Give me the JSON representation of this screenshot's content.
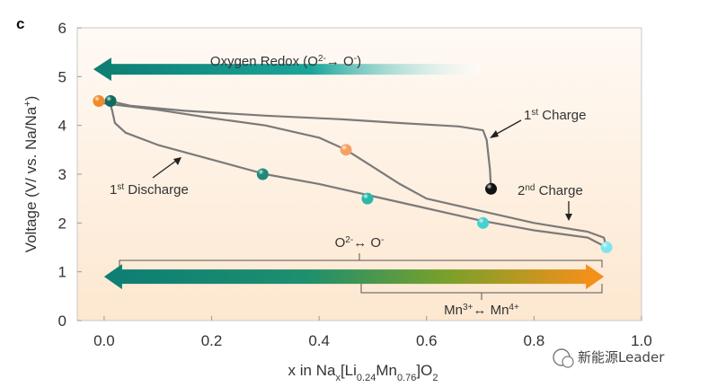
{
  "panel_label": "c",
  "watermark": "新能源Leader",
  "chart_data": {
    "type": "line",
    "xlabel": {
      "base": "x in Na",
      "sub1": "x",
      "mid1": "[Li",
      "sub2": "0.24",
      "mid2": "Mn",
      "sub3": "0.76",
      "mid3": "]O",
      "sub4": "2"
    },
    "ylabel": {
      "base": "Voltage (V/ vs. Na/Na",
      "sup": "+",
      "end": ")"
    },
    "xlim": [
      -0.05,
      1.0
    ],
    "ylim": [
      0,
      6
    ],
    "xticks": [
      {
        "v": 0.0,
        "label": "0.0"
      },
      {
        "v": 0.2,
        "label": "0.2"
      },
      {
        "v": 0.4,
        "label": "0.4"
      },
      {
        "v": 0.6,
        "label": "0.6"
      },
      {
        "v": 0.8,
        "label": "0.8"
      },
      {
        "v": 1.0,
        "label": "1.0"
      }
    ],
    "yticks": [
      {
        "v": 0,
        "label": "0"
      },
      {
        "v": 1,
        "label": "1"
      },
      {
        "v": 2,
        "label": "2"
      },
      {
        "v": 3,
        "label": "3"
      },
      {
        "v": 4,
        "label": "4"
      },
      {
        "v": 5,
        "label": "5"
      },
      {
        "v": 6,
        "label": "6"
      }
    ],
    "series": [
      {
        "name": "1st Charge",
        "color": "#7a7a7a",
        "points": [
          [
            0.72,
            2.7
          ],
          [
            0.718,
            3.1
          ],
          [
            0.712,
            3.7
          ],
          [
            0.705,
            3.9
          ],
          [
            0.66,
            3.98
          ],
          [
            0.55,
            4.05
          ],
          [
            0.45,
            4.12
          ],
          [
            0.3,
            4.2
          ],
          [
            0.15,
            4.3
          ],
          [
            0.05,
            4.4
          ],
          [
            0.01,
            4.5
          ]
        ]
      },
      {
        "name": "1st Discharge",
        "color": "#7a7a7a",
        "points": [
          [
            0.01,
            4.5
          ],
          [
            0.015,
            4.3
          ],
          [
            0.02,
            4.05
          ],
          [
            0.04,
            3.85
          ],
          [
            0.1,
            3.6
          ],
          [
            0.2,
            3.3
          ],
          [
            0.3,
            3.0
          ],
          [
            0.4,
            2.8
          ],
          [
            0.5,
            2.55
          ],
          [
            0.6,
            2.3
          ],
          [
            0.7,
            2.05
          ],
          [
            0.8,
            1.85
          ],
          [
            0.9,
            1.7
          ],
          [
            0.935,
            1.5
          ]
        ]
      },
      {
        "name": "2nd Charge",
        "color": "#7a7a7a",
        "points": [
          [
            0.935,
            1.5
          ],
          [
            0.93,
            1.7
          ],
          [
            0.9,
            1.82
          ],
          [
            0.8,
            2.0
          ],
          [
            0.7,
            2.25
          ],
          [
            0.6,
            2.5
          ],
          [
            0.55,
            2.8
          ],
          [
            0.5,
            3.15
          ],
          [
            0.45,
            3.5
          ],
          [
            0.4,
            3.75
          ],
          [
            0.3,
            4.0
          ],
          [
            0.2,
            4.15
          ],
          [
            0.1,
            4.32
          ],
          [
            0.0,
            4.45
          ],
          [
            -0.01,
            4.5
          ]
        ]
      }
    ],
    "markers": [
      {
        "x": -0.01,
        "y": 4.5,
        "color": "#f08a2a"
      },
      {
        "x": 0.012,
        "y": 4.5,
        "color": "#0f6b60"
      },
      {
        "x": 0.45,
        "y": 3.5,
        "color": "#f4a264"
      },
      {
        "x": 0.72,
        "y": 2.7,
        "color": "#111111"
      },
      {
        "x": 0.295,
        "y": 3.0,
        "color": "#1f8a7a"
      },
      {
        "x": 0.49,
        "y": 2.5,
        "color": "#2ab8a8"
      },
      {
        "x": 0.705,
        "y": 2.0,
        "color": "#46d0d0"
      },
      {
        "x": 0.935,
        "y": 1.5,
        "color": "#7fe6ee"
      }
    ],
    "annotations": {
      "oxygen_redox": {
        "text_start": "Oxygen Redox (O",
        "sup1": "2-",
        "arrow": "→",
        "text_mid": " O",
        "sup2": "-",
        "text_end": ")",
        "y": 5.15,
        "x_from": 0.7,
        "x_to": -0.02
      },
      "first_charge": {
        "num": "1",
        "sup": "st",
        "text": " Charge"
      },
      "first_discharge": {
        "num": "1",
        "sup": "st",
        "text": " Discharge"
      },
      "second_charge": {
        "num": "2",
        "sup": "nd",
        "text": " Charge"
      },
      "o_couple": {
        "left": "O",
        "left_sup": "2-",
        "arrow": "↔",
        "right": " O",
        "right_sup": "-"
      },
      "mn_couple": {
        "left": "Mn",
        "left_sup": "3+",
        "arrow": "↔",
        "right": " Mn",
        "right_sup": "4+"
      },
      "band_arrow": {
        "y": 0.9,
        "x_from": 0.0,
        "x_to": 0.93
      }
    },
    "colors": {
      "accent_teal": "#0e7f73",
      "accent_orange": "#f39019",
      "accent_green": "#7aa02a",
      "bg_top": "#fffaf5",
      "bg_bottom": "#fde7d0"
    }
  }
}
